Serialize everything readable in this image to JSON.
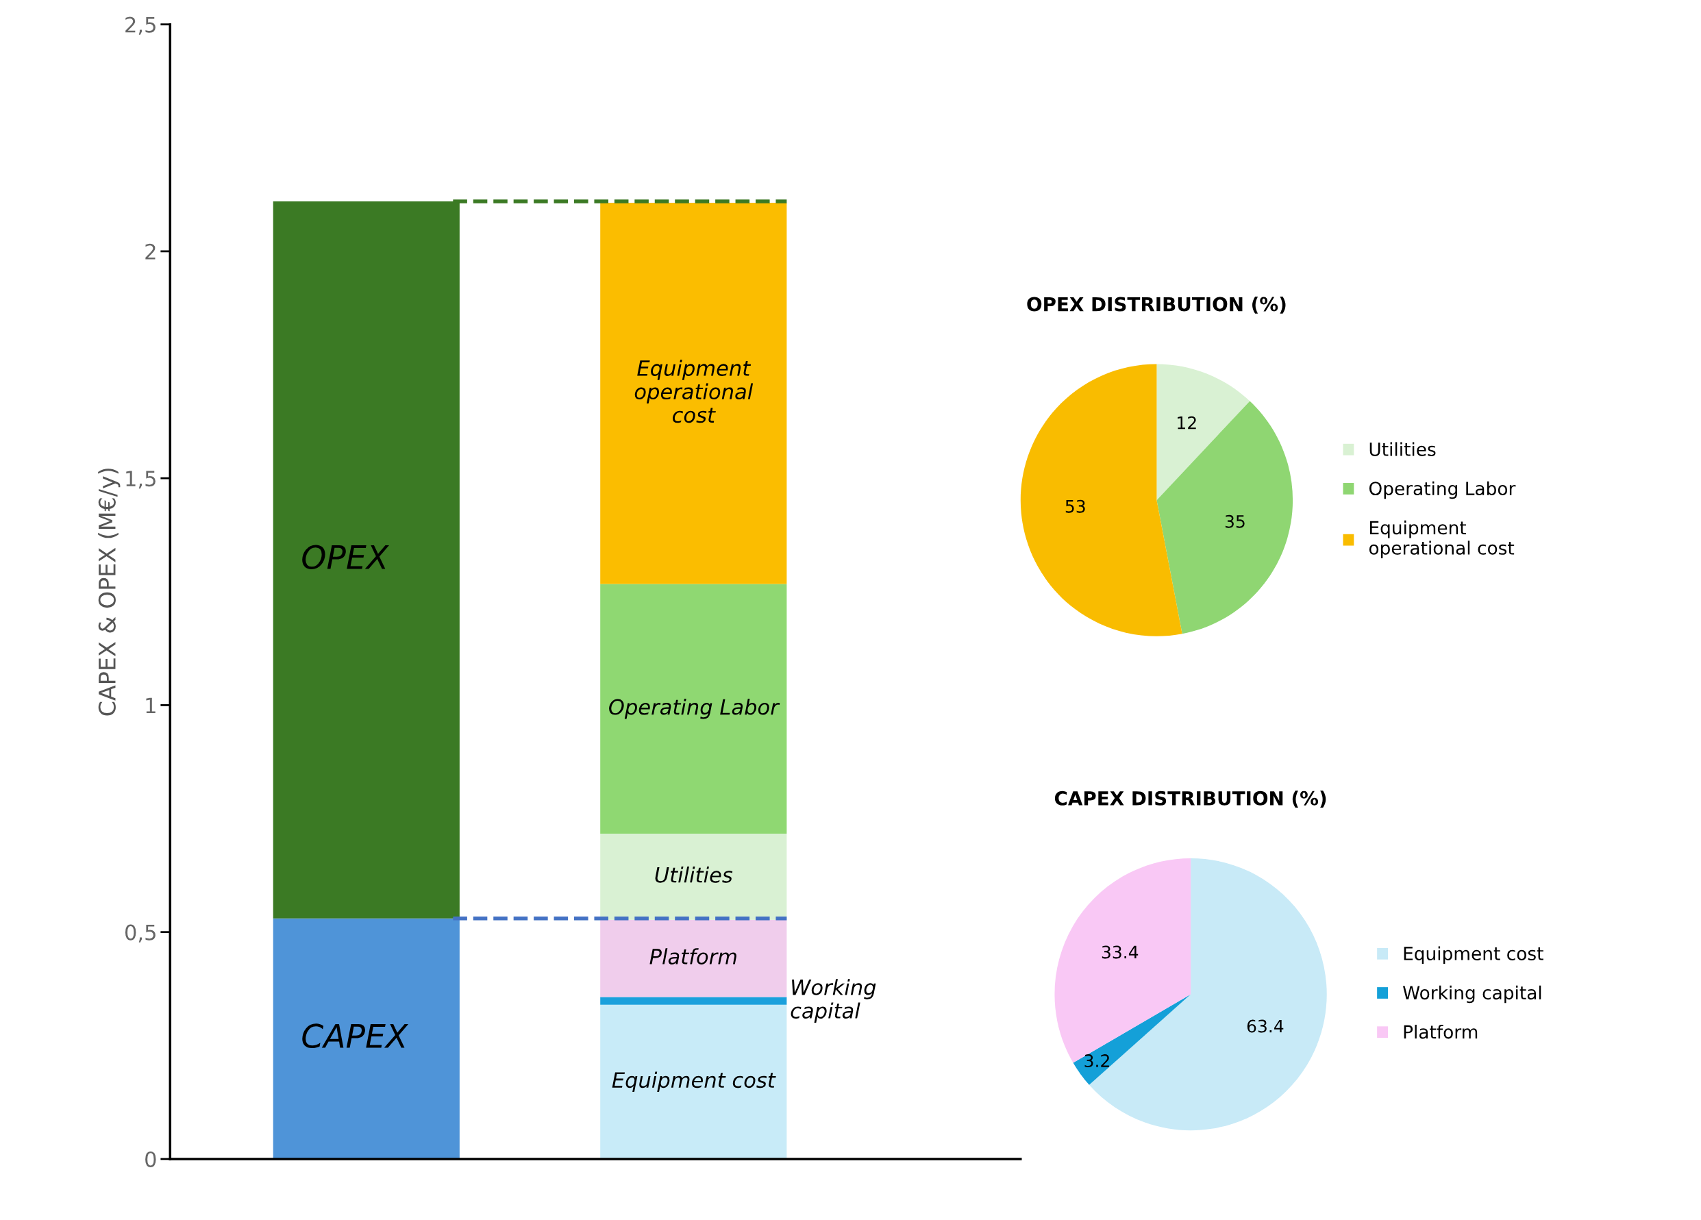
{
  "chart_data": [
    {
      "type": "bar",
      "stacked": true,
      "ylabel": "CAPEX & OPEX (M€/y)",
      "categories": [
        null,
        null
      ],
      "series": [
        {
          "name": "CAPEX",
          "color": "#4f94d8",
          "values": [
            0.53,
            null
          ]
        },
        {
          "name": "OPEX",
          "color": "#3b7a24",
          "values": [
            1.58,
            null
          ]
        },
        {
          "name": "Equipment cost",
          "color": "#c8ebf8",
          "values": [
            null,
            0.34
          ]
        },
        {
          "name": "Working\ncapital",
          "color": "#1ba0dc",
          "values": [
            null,
            0.017
          ]
        },
        {
          "name": "Platform",
          "color": "#f0cdec",
          "values": [
            null,
            0.17
          ]
        },
        {
          "name": "Utilities",
          "color": "#d9f1d3",
          "values": [
            null,
            0.19
          ]
        },
        {
          "name": "Operating Labor",
          "color": "#8fd872",
          "values": [
            null,
            0.55
          ]
        },
        {
          "name": "Equipment\noperational\ncost",
          "color": "#fbbd00",
          "values": [
            null,
            0.84
          ]
        }
      ],
      "ylim": [
        0,
        2.5
      ],
      "yticks": [
        0,
        {
          "value": 0.5,
          "label": "0,5"
        },
        1,
        {
          "value": 1.5,
          "label": "1,5"
        },
        2,
        {
          "value": 2.5,
          "label": "2,5"
        }
      ],
      "ref_lines": [
        {
          "axis": "y",
          "value": 2.11,
          "color": "#3b7a24",
          "line_style": "dashed"
        },
        {
          "axis": "y",
          "value": 0.53,
          "color": "#4472c4",
          "line_style": "dashed"
        }
      ],
      "tick_labels": "y",
      "grid": false
    },
    {
      "type": "pie",
      "title": "OPEX DISTRIBUTION (%)",
      "categories": [
        "Utilities",
        "Operating Labor",
        "Equipment\noperational cost"
      ],
      "values": [
        12,
        35,
        53
      ],
      "colors": [
        "#d9f1d3",
        "#8fd672",
        "#f9bc00"
      ],
      "data_labels": true,
      "legend": "right"
    },
    {
      "type": "pie",
      "title": "CAPEX DISTRIBUTION (%)",
      "categories": [
        "Equipment cost",
        "Working capital",
        "Platform"
      ],
      "values": [
        63.4,
        3.2,
        33.4
      ],
      "colors": [
        "#c8eaf7",
        "#14a0d8",
        "#f9c8f5"
      ],
      "data_labels": true,
      "legend": "right"
    }
  ]
}
